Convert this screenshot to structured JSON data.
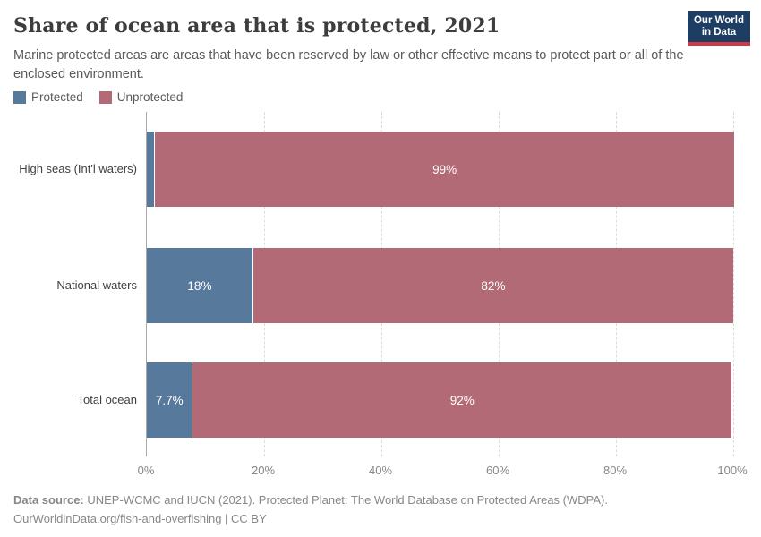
{
  "header": {
    "title": "Share of ocean area that is protected, 2021",
    "subtitle": "Marine protected areas are areas that have been reserved by law or other effective means to protect part or all of the enclosed environment.",
    "logo": {
      "line1": "Our World",
      "line2": "in Data"
    }
  },
  "legend": [
    {
      "label": "Protected",
      "color": "#57799c"
    },
    {
      "label": "Unprotected",
      "color": "#b26b76"
    }
  ],
  "chart_data": {
    "type": "bar",
    "orientation": "horizontal",
    "stacked": true,
    "title": "Share of ocean area that is protected, 2021",
    "categories": [
      "High seas (Int'l waters)",
      "National waters",
      "Total ocean"
    ],
    "series": [
      {
        "name": "Protected",
        "color": "#57799c",
        "values": [
          1.2,
          18,
          7.7
        ],
        "labels": [
          "",
          "18%",
          "7.7%"
        ]
      },
      {
        "name": "Unprotected",
        "color": "#b26b76",
        "values": [
          99,
          82,
          92
        ],
        "labels": [
          "99%",
          "82%",
          "92%"
        ]
      }
    ],
    "xlim": [
      0,
      100
    ],
    "x_tick_values": [
      0,
      20,
      40,
      60,
      80,
      100
    ],
    "x_tick_labels": [
      "0%",
      "20%",
      "40%",
      "60%",
      "80%",
      "100%"
    ],
    "grid": "vertical-dashed",
    "legend_position": "top-left",
    "bar_label_color": "#ffffff"
  },
  "footer": {
    "source_label": "Data source:",
    "source_text": " UNEP-WCMC and IUCN (2021). Protected Planet: The World Database on Protected Areas (WDPA).",
    "link_line": "OurWorldinData.org/fish-and-overfishing | CC BY"
  },
  "colors": {
    "protected": "#57799c",
    "unprotected": "#b26b76",
    "logo_bg": "#1d3d63",
    "logo_stripe": "#cf3b44",
    "axis_line": "#a9a9a9",
    "gridline": "#dcdcdc",
    "title_text": "#3d3d3d",
    "tick_text": "#878787"
  }
}
